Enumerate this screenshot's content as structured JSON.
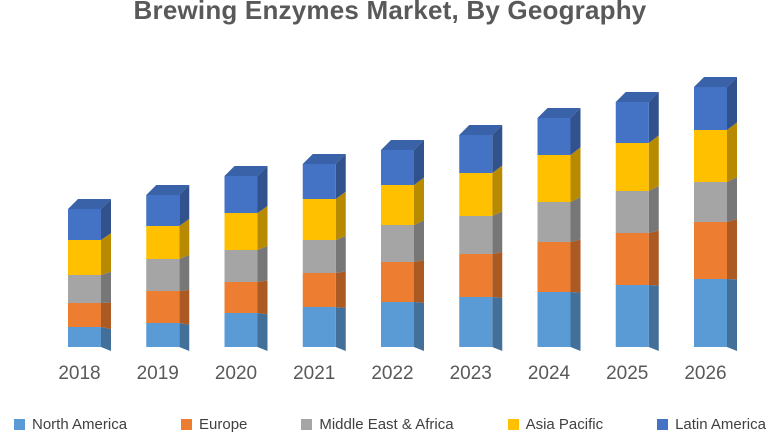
{
  "title": "Brewing Enzymes Market, By Geography",
  "background_color": "#FFFFFF",
  "text_colors": {
    "title": "#595959",
    "axis_labels": "#595959",
    "legend": "#404040"
  },
  "chart_data": {
    "type": "bar",
    "stacked": true,
    "style": "3d-column",
    "title": "Brewing Enzymes Market, By Geography",
    "xlabel": "",
    "ylabel": "",
    "y_axis_visible": false,
    "grid": false,
    "legend_position": "bottom",
    "value_units": "relative height (no value axis shown in image)",
    "categories": [
      "2018",
      "2019",
      "2020",
      "2021",
      "2022",
      "2023",
      "2024",
      "2025",
      "2026"
    ],
    "series": [
      {
        "name": "North America",
        "color": "#5B9BD5",
        "values": [
          20,
          24,
          34,
          40,
          45,
          50,
          55,
          62,
          68
        ]
      },
      {
        "name": "Europe",
        "color": "#ED7D31",
        "values": [
          24,
          32,
          31,
          34,
          40,
          43,
          50,
          52,
          57
        ]
      },
      {
        "name": "Middle East & Africa",
        "color": "#A5A5A5",
        "values": [
          28,
          32,
          32,
          33,
          37,
          38,
          40,
          42,
          40
        ]
      },
      {
        "name": "Asia Pacific",
        "color": "#FFC000",
        "values": [
          35,
          33,
          37,
          41,
          40,
          43,
          47,
          48,
          52
        ]
      },
      {
        "name": "Latin America",
        "color": "#4472C4",
        "values": [
          31,
          31,
          37,
          35,
          35,
          38,
          37,
          41,
          43
        ]
      }
    ],
    "stack_order_bottom_to_top": [
      "North America",
      "Europe",
      "Middle East & Africa",
      "Asia Pacific",
      "Latin America"
    ],
    "totals": [
      138,
      152,
      171,
      183,
      197,
      212,
      229,
      245,
      260
    ]
  }
}
